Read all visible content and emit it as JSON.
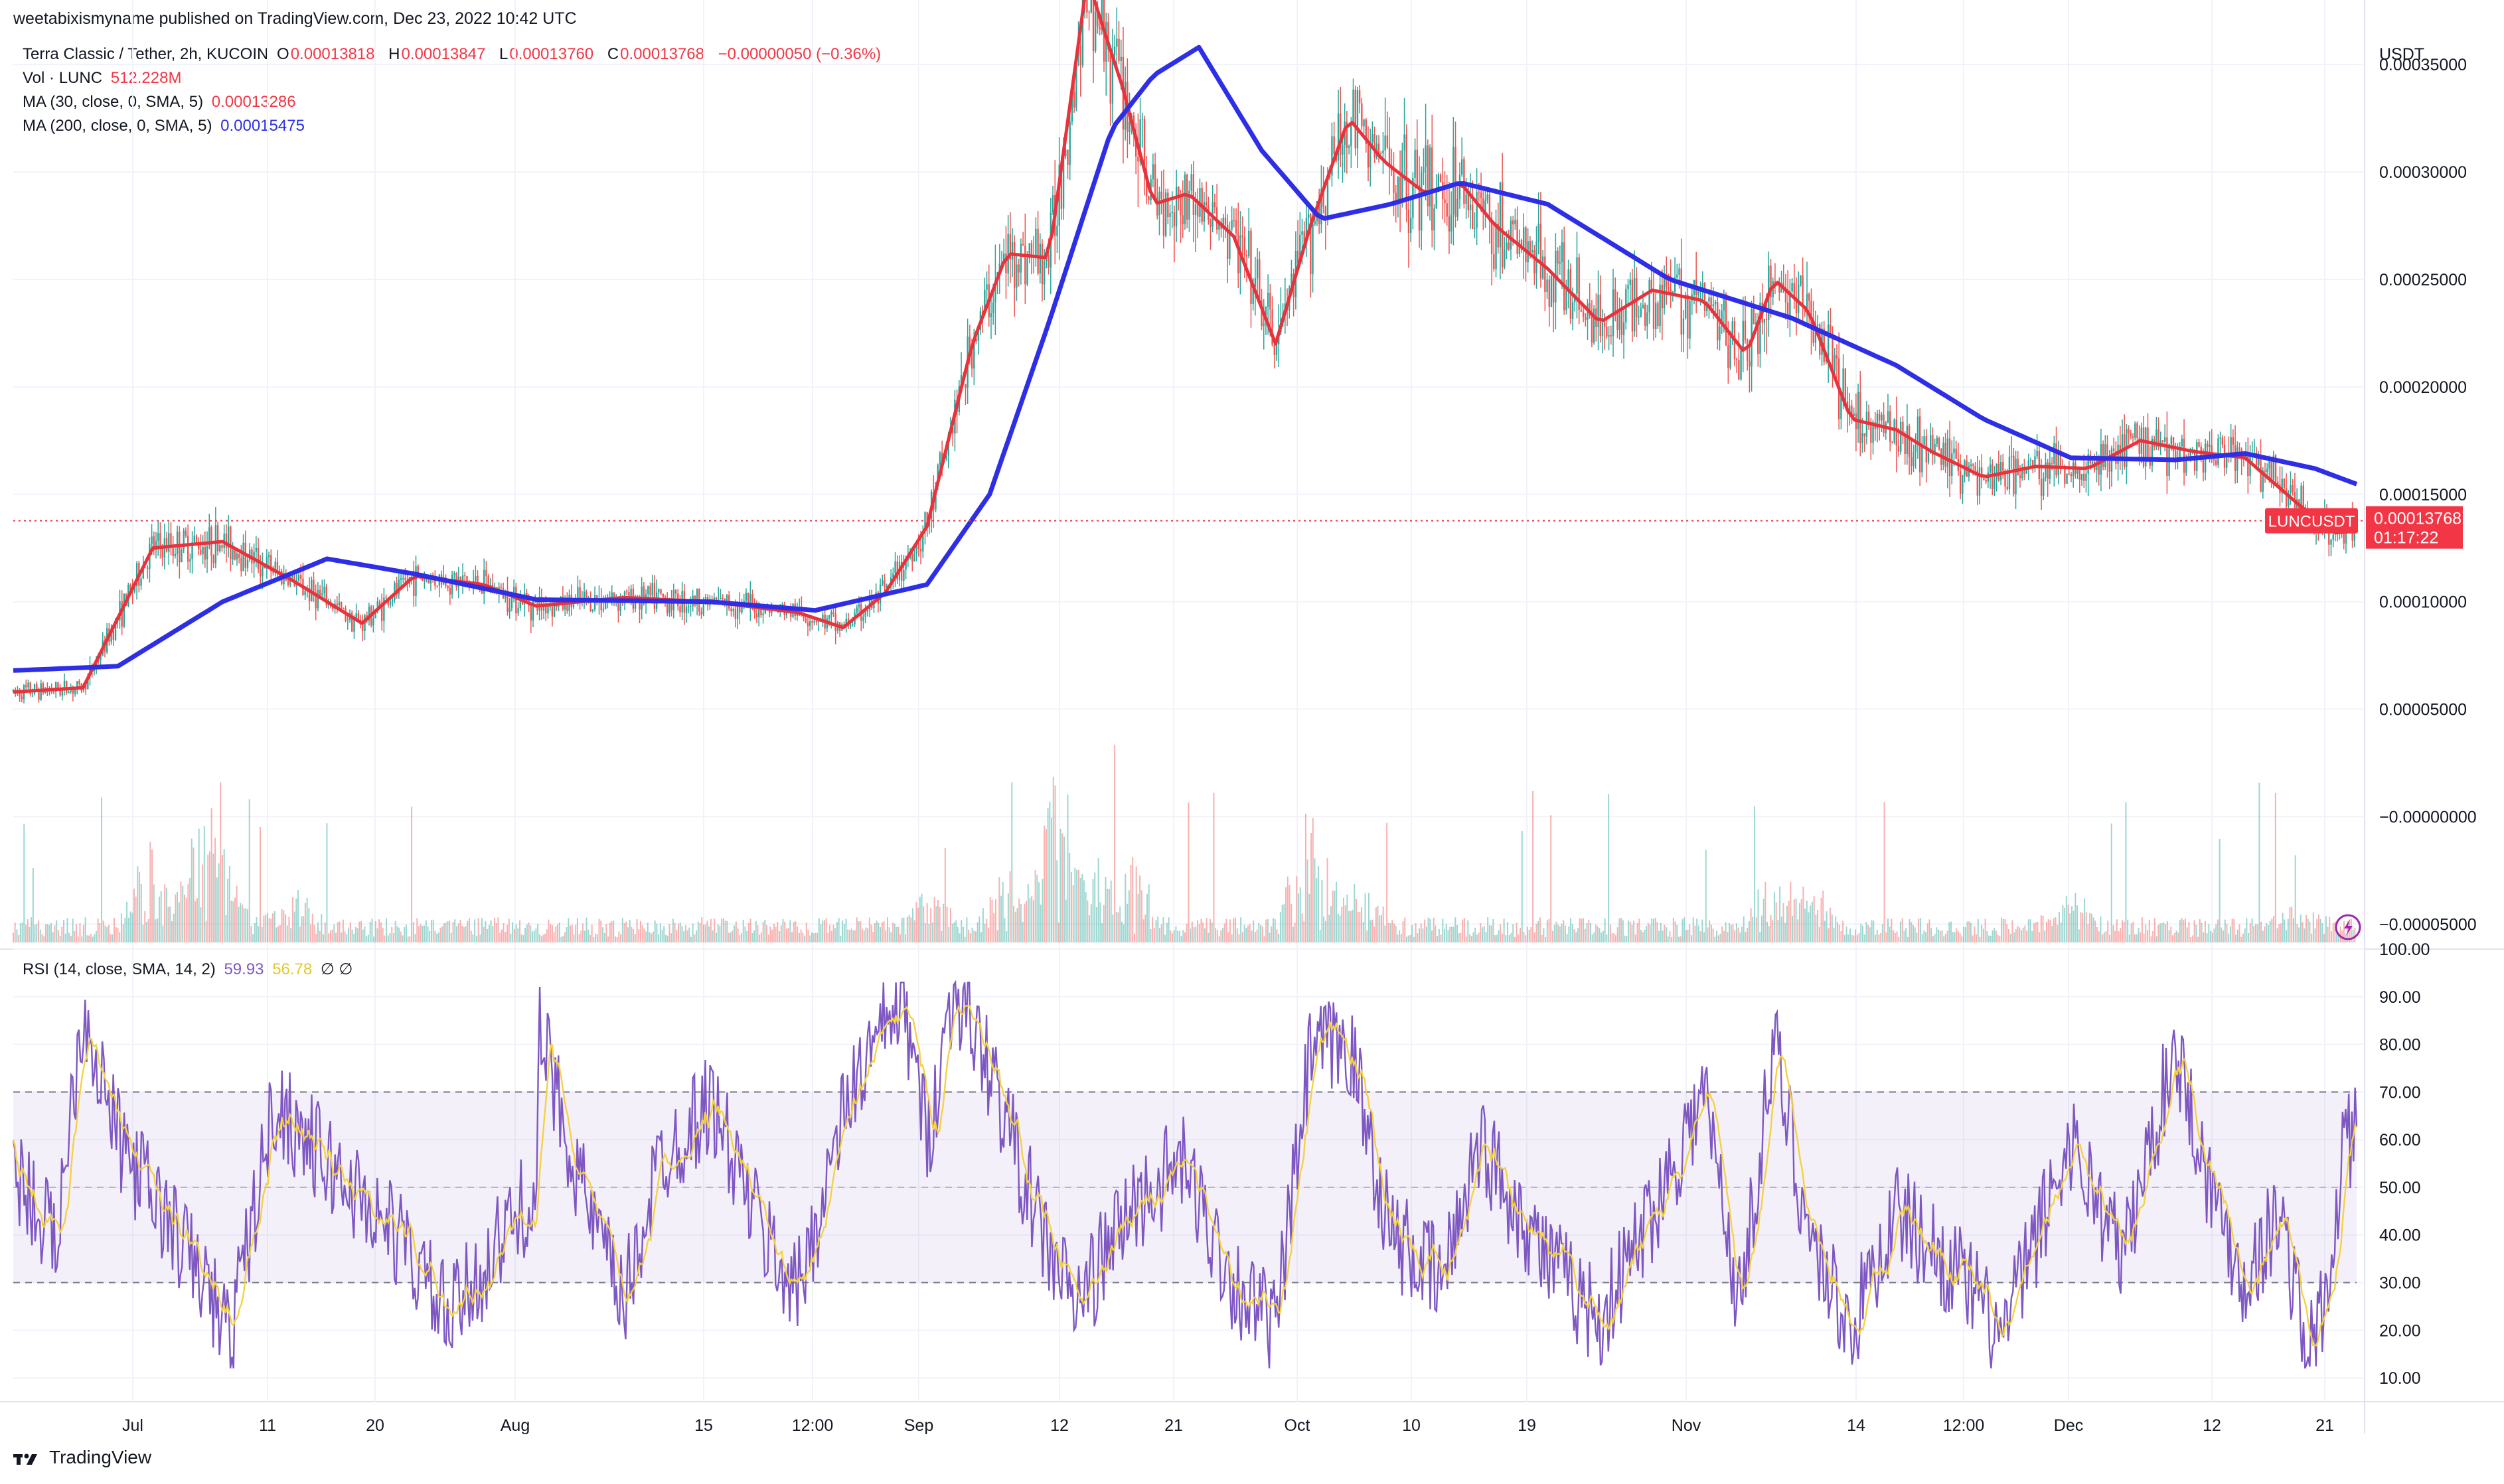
{
  "header": {
    "publisher": "weetabixismyname published on TradingView.com, Dec 23, 2022 10:42 UTC"
  },
  "legend": {
    "symbol": "Terra Classic / Tether, 2h, KUCOIN",
    "ohlc": [
      {
        "k": "O",
        "v": "0.00013818"
      },
      {
        "k": "H",
        "v": "0.00013847"
      },
      {
        "k": "L",
        "v": "0.00013760"
      },
      {
        "k": "C",
        "v": "0.00013768"
      }
    ],
    "change": "−0.00000050 (−0.36%)",
    "vol_label": "Vol · LUNC",
    "vol_value": "512.228M",
    "ma30_label": "MA (30, close, 0, SMA, 5)",
    "ma30_value": "0.00013286",
    "ma200_label": "MA (200, close, 0, SMA, 5)",
    "ma200_value": "0.00015475",
    "rsi_label": "RSI (14, close, SMA, 14, 2)",
    "rsi_value": "59.93",
    "rsi_ma_value": "56.78",
    "rsi_flags": "∅ ∅"
  },
  "price_badge": {
    "symbol": "LUNCUSDT",
    "price": "0.00013768",
    "countdown": "01:17:22"
  },
  "brand": "TradingView",
  "colors": {
    "ma30": "#e8323c",
    "ma200": "#2e2ee6",
    "rsi": "#7e57c2",
    "rsi_ma": "#f5d142",
    "up": "#26a69a",
    "down": "#ef5350",
    "badge": "#f23645"
  },
  "chart_data": [
    {
      "type": "line",
      "panel": "price",
      "ylabel": "USDT",
      "ylim": [
        -6.16e-05,
        0.00038
      ],
      "yticks": [
        "0.00035000",
        "0.00030000",
        "0.00025000",
        "0.00020000",
        "0.00015000",
        "0.00010000",
        "0.00005000",
        "−0.00000000",
        "−0.00005000"
      ],
      "ytick_values": [
        0.00035,
        0.0003,
        0.00025,
        0.0002,
        0.00015,
        0.0001,
        5e-05,
        0,
        -5e-05
      ],
      "x_ticks": [
        "Jul",
        "11",
        "20",
        "Aug",
        "15",
        "12:00",
        "Sep",
        "12",
        "21",
        "Oct",
        "10",
        "19",
        "Nov",
        "14",
        "12:00",
        "Dec",
        "12",
        "21"
      ],
      "last_price": 0.00013768,
      "series": [
        {
          "name": "MA (30, close, 0, SMA, 5)",
          "values": [
            [
              0,
              5.8e-05
            ],
            [
              20,
              6e-05
            ],
            [
              40,
              0.000125
            ],
            [
              60,
              0.000128
            ],
            [
              80,
              0.00011
            ],
            [
              100,
              9e-05
            ],
            [
              115,
              0.000112
            ],
            [
              135,
              0.000108
            ],
            [
              150,
              9.8e-05
            ],
            [
              175,
              0.000102
            ],
            [
              200,
              0.0001
            ],
            [
              225,
              9.5e-05
            ],
            [
              238,
              8.8e-05
            ],
            [
              250,
              0.000104
            ],
            [
              262,
              0.000135
            ],
            [
              275,
              0.00022
            ],
            [
              285,
              0.000262
            ],
            [
              297,
              0.00026
            ],
            [
              308,
              0.00039
            ],
            [
              318,
              0.00034
            ],
            [
              327,
              0.000285
            ],
            [
              337,
              0.00029
            ],
            [
              350,
              0.00027
            ],
            [
              362,
              0.00022
            ],
            [
              372,
              0.000275
            ],
            [
              383,
              0.000325
            ],
            [
              393,
              0.000305
            ],
            [
              405,
              0.00029
            ],
            [
              415,
              0.000295
            ],
            [
              425,
              0.000275
            ],
            [
              440,
              0.000255
            ],
            [
              455,
              0.00023
            ],
            [
              470,
              0.000245
            ],
            [
              485,
              0.00024
            ],
            [
              497,
              0.000215
            ],
            [
              505,
              0.00025
            ],
            [
              515,
              0.000235
            ],
            [
              527,
              0.000185
            ],
            [
              540,
              0.00018
            ],
            [
              550,
              0.00017
            ],
            [
              565,
              0.000158
            ],
            [
              580,
              0.000163
            ],
            [
              595,
              0.000162
            ],
            [
              610,
              0.000175
            ],
            [
              625,
              0.00017
            ],
            [
              640,
              0.000167
            ],
            [
              652,
              0.00015
            ],
            [
              665,
              0.000132
            ],
            [
              672,
              0.00013286
            ]
          ]
        },
        {
          "name": "MA (200, close, 0, SMA, 5)",
          "values": [
            [
              0,
              6.8e-05
            ],
            [
              30,
              7e-05
            ],
            [
              60,
              0.0001
            ],
            [
              90,
              0.00012
            ],
            [
              115,
              0.000113
            ],
            [
              150,
              0.000101
            ],
            [
              200,
              0.0001
            ],
            [
              230,
              9.6e-05
            ],
            [
              262,
              0.000108
            ],
            [
              280,
              0.00015
            ],
            [
              297,
              0.00023
            ],
            [
              315,
              0.00032
            ],
            [
              327,
              0.000345
            ],
            [
              340,
              0.000358
            ],
            [
              358,
              0.00031
            ],
            [
              375,
              0.000278
            ],
            [
              395,
              0.000285
            ],
            [
              415,
              0.000295
            ],
            [
              440,
              0.000285
            ],
            [
              475,
              0.00025
            ],
            [
              510,
              0.000232
            ],
            [
              540,
              0.00021
            ],
            [
              565,
              0.000185
            ],
            [
              590,
              0.000167
            ],
            [
              620,
              0.000166
            ],
            [
              640,
              0.000169
            ],
            [
              660,
              0.000162
            ],
            [
              672,
              0.00015475
            ]
          ]
        }
      ]
    },
    {
      "type": "bar",
      "panel": "volume",
      "series": [
        {
          "name": "Vol · LUNC",
          "last_value": "512.228M"
        }
      ]
    },
    {
      "type": "line",
      "panel": "rsi",
      "ylim": [
        5,
        100
      ],
      "yticks": [
        "100.00",
        "90.00",
        "80.00",
        "70.00",
        "60.00",
        "50.00",
        "40.00",
        "30.00",
        "20.00",
        "10.00"
      ],
      "ytick_values": [
        100,
        90,
        80,
        70,
        60,
        50,
        40,
        30,
        20,
        10
      ],
      "bands": {
        "upper": 70,
        "middle": 50,
        "lower": 30
      },
      "series": [
        {
          "name": "RSI (14, close, SMA, 14, 2)",
          "last_value": 59.93
        },
        {
          "name": "RSI MA",
          "last_value": 56.78
        }
      ]
    }
  ]
}
